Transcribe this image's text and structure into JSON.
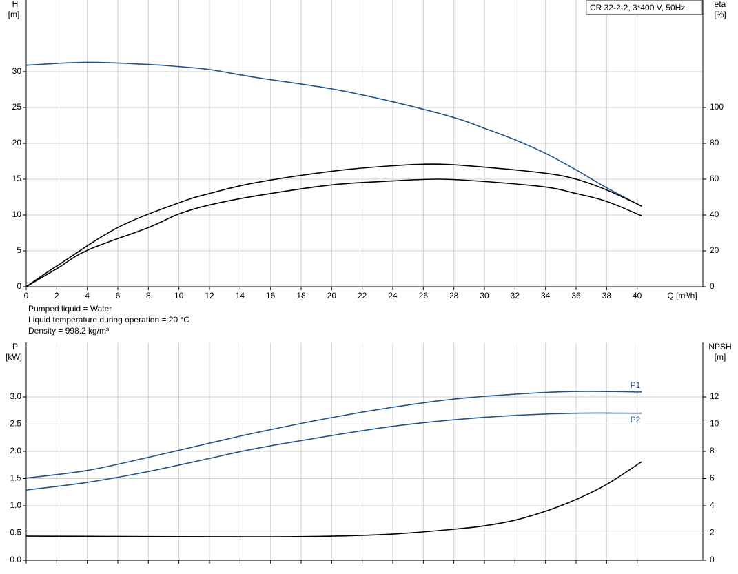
{
  "chart_data": [
    {
      "type": "line",
      "legend_text": "CR 32-2-2, 3*400 V, 50Hz",
      "ylabel": "H",
      "ylabel_unit": "[m]",
      "y2label": "eta",
      "y2label_unit": "[%]",
      "xlabel": "Q [m³/h]",
      "xlim": [
        0,
        44.3
      ],
      "xticks": [
        0,
        2,
        4,
        6,
        8,
        10,
        12,
        14,
        16,
        18,
        20,
        22,
        24,
        26,
        28,
        30,
        32,
        34,
        36,
        38,
        40
      ],
      "ylim": [
        0,
        40
      ],
      "yticks": [
        0,
        5,
        10,
        15,
        20,
        25,
        30
      ],
      "y2lim": [
        0,
        160
      ],
      "y2ticks": [
        0,
        20,
        40,
        60,
        80,
        100
      ],
      "grid": true,
      "series": [
        {
          "color": "#20538a",
          "x": [
            0,
            4,
            8,
            10,
            12,
            15,
            20,
            24,
            28,
            30,
            32,
            34,
            36,
            38,
            40.3
          ],
          "values": [
            30.9,
            31.3,
            31.0,
            30.7,
            30.3,
            29.2,
            27.6,
            25.8,
            23.6,
            22.1,
            20.5,
            18.6,
            16.3,
            13.8,
            11.2
          ]
        },
        {
          "color": "#000000",
          "axis": "y2",
          "x": [
            0,
            2,
            6,
            10,
            12,
            15,
            20,
            24,
            27,
            30,
            34,
            36,
            38,
            40.3
          ],
          "values": [
            0,
            11.5,
            33,
            46.8,
            52,
            58,
            64.4,
            67.5,
            68.4,
            66.7,
            63.3,
            60,
            54,
            45
          ]
        },
        {
          "color": "#000000",
          "axis": "y2",
          "x": [
            0,
            2,
            4,
            8,
            10,
            12,
            15,
            20,
            24,
            27,
            30,
            34,
            36,
            38,
            40.3
          ],
          "values": [
            0,
            10,
            20.3,
            33,
            40.6,
            45.6,
            50.6,
            56.8,
            59,
            60,
            58.7,
            55.6,
            52,
            47.6,
            39.5
          ]
        }
      ]
    },
    {
      "type": "line",
      "ylabel": "P",
      "ylabel_unit": "[kW]",
      "y2label": "NPSH",
      "y2label_unit": "[m]",
      "ylim": [
        0,
        4
      ],
      "yticks": [
        {
          "value": 0,
          "label": "0.0"
        },
        0.5,
        {
          "value": 1,
          "label": "1.0"
        },
        1.5,
        {
          "value": 2,
          "label": "2.0"
        },
        2.5,
        {
          "value": 3,
          "label": "3.0"
        }
      ],
      "y2lim": [
        0,
        16
      ],
      "y2ticks": [
        0,
        2,
        4,
        6,
        8,
        10,
        12
      ],
      "grid": true,
      "series": [
        {
          "name": "P1",
          "color": "#20538a",
          "x": [
            0,
            4,
            8,
            12,
            15,
            20,
            24,
            28,
            32,
            36,
            40.3
          ],
          "values": [
            1.51,
            1.65,
            1.89,
            2.15,
            2.34,
            2.62,
            2.81,
            2.96,
            3.05,
            3.1,
            3.09
          ]
        },
        {
          "name": "P2",
          "color": "#20538a",
          "x": [
            0,
            4,
            8,
            12,
            15,
            20,
            24,
            28,
            32,
            36,
            40.3
          ],
          "values": [
            1.29,
            1.43,
            1.63,
            1.87,
            2.05,
            2.29,
            2.46,
            2.58,
            2.66,
            2.7,
            2.7
          ]
        },
        {
          "color": "#000000",
          "axis": "y2",
          "x": [
            0,
            15,
            20,
            24,
            28,
            30,
            32,
            34,
            36,
            38,
            40.3
          ],
          "values": [
            1.77,
            1.72,
            1.77,
            1.92,
            2.28,
            2.53,
            2.94,
            3.6,
            4.46,
            5.57,
            7.24
          ]
        }
      ]
    }
  ],
  "notes": [
    "Pumped liquid = Water",
    "Liquid temperature during operation = 20 °C",
    "Density = 998.2 kg/m³"
  ]
}
